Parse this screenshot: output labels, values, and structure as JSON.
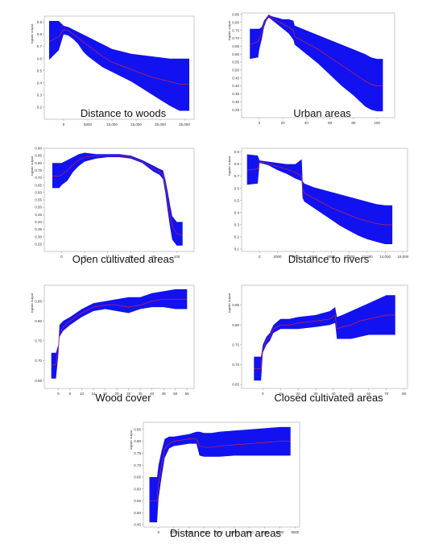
{
  "chart_data": [
    {
      "type": "area",
      "title": "Distance to woods",
      "ylabel": "logistic output",
      "xlim": [
        -4000,
        27000
      ],
      "ylim": [
        0.1,
        0.95
      ],
      "xticks": [
        0,
        5000,
        10000,
        15000,
        20000,
        25000
      ],
      "xtick_labels": [
        "0",
        "5000",
        "10,000",
        "15,000",
        "20,000",
        "25,000"
      ],
      "yticks": [
        0.2,
        0.3,
        0.4,
        0.5,
        0.6,
        0.7,
        0.8,
        0.9
      ],
      "ytick_labels": [
        "0.2",
        "0.3",
        "0.4",
        "0.5",
        "0.6",
        "0.7",
        "0.8",
        "0.9"
      ],
      "x": [
        -3000,
        -1000,
        0,
        1000,
        2000,
        3000,
        4000,
        5000,
        6000,
        7000,
        8000,
        10000,
        12000,
        14000,
        16000,
        18000,
        20000,
        22000,
        24000,
        25000,
        26000
      ],
      "mean": [
        0.74,
        0.78,
        0.84,
        0.83,
        0.8,
        0.77,
        0.74,
        0.71,
        0.68,
        0.65,
        0.62,
        0.57,
        0.54,
        0.51,
        0.48,
        0.45,
        0.43,
        0.41,
        0.39,
        0.39,
        0.39
      ],
      "upper": [
        0.91,
        0.91,
        0.87,
        0.86,
        0.84,
        0.82,
        0.8,
        0.78,
        0.76,
        0.74,
        0.72,
        0.68,
        0.66,
        0.64,
        0.63,
        0.62,
        0.61,
        0.6,
        0.6,
        0.6,
        0.6
      ],
      "lower": [
        0.59,
        0.67,
        0.8,
        0.79,
        0.76,
        0.72,
        0.66,
        0.62,
        0.59,
        0.56,
        0.53,
        0.49,
        0.45,
        0.41,
        0.36,
        0.31,
        0.26,
        0.21,
        0.17,
        0.17,
        0.17
      ]
    },
    {
      "type": "area",
      "title": "Urban areas",
      "ylabel": "logistic output",
      "xlim": [
        -15,
        115
      ],
      "ylim": [
        0.2,
        0.86
      ],
      "xticks": [
        0,
        20,
        40,
        60,
        80,
        100
      ],
      "xtick_labels": [
        "0",
        "20",
        "40",
        "60",
        "80",
        "100"
      ],
      "yticks": [
        0.25,
        0.3,
        0.35,
        0.4,
        0.45,
        0.5,
        0.55,
        0.6,
        0.65,
        0.7,
        0.75,
        0.8,
        0.85
      ],
      "ytick_labels": [
        "0.25",
        "0.30",
        "0.35",
        "0.40",
        "0.45",
        "0.50",
        "0.55",
        "0.60",
        "0.65",
        "0.70",
        "0.75",
        "0.80",
        "0.85"
      ],
      "x": [
        -8,
        -1,
        0,
        2,
        4,
        6,
        8,
        10,
        15,
        20,
        25,
        29,
        30,
        40,
        50,
        60,
        70,
        80,
        90,
        95,
        100,
        105
      ],
      "mean": [
        0.66,
        0.68,
        0.7,
        0.73,
        0.79,
        0.82,
        0.84,
        0.83,
        0.81,
        0.79,
        0.77,
        0.75,
        0.71,
        0.67,
        0.63,
        0.58,
        0.53,
        0.48,
        0.43,
        0.41,
        0.4,
        0.4
      ],
      "upper": [
        0.76,
        0.76,
        0.76,
        0.77,
        0.81,
        0.83,
        0.85,
        0.84,
        0.83,
        0.82,
        0.82,
        0.81,
        0.78,
        0.75,
        0.72,
        0.69,
        0.66,
        0.63,
        0.6,
        0.58,
        0.57,
        0.57
      ],
      "lower": [
        0.57,
        0.58,
        0.63,
        0.69,
        0.77,
        0.81,
        0.83,
        0.82,
        0.79,
        0.76,
        0.73,
        0.69,
        0.66,
        0.6,
        0.54,
        0.47,
        0.4,
        0.34,
        0.27,
        0.25,
        0.24,
        0.24
      ]
    },
    {
      "type": "area",
      "title": "Open cultivated areas",
      "ylabel": "logistic output",
      "xlim": [
        -15,
        115
      ],
      "ylim": [
        0.2,
        0.9
      ],
      "xticks": [
        0,
        20,
        40,
        60,
        80,
        100
      ],
      "xtick_labels": [
        "0",
        "20",
        "40",
        "60",
        "80",
        "100"
      ],
      "yticks": [
        0.25,
        0.3,
        0.35,
        0.4,
        0.45,
        0.5,
        0.55,
        0.6,
        0.65,
        0.7,
        0.75,
        0.8,
        0.85,
        0.9
      ],
      "ytick_labels": [
        "0.25",
        "0.30",
        "0.35",
        "0.40",
        "0.45",
        "0.50",
        "0.55",
        "0.60",
        "0.65",
        "0.70",
        "0.75",
        "0.80",
        "0.85",
        "0.90"
      ],
      "x": [
        -8,
        -2,
        0,
        5,
        10,
        15,
        20,
        30,
        40,
        50,
        60,
        70,
        80,
        85,
        88,
        90,
        92,
        94,
        96,
        100,
        105
      ],
      "mean": [
        0.71,
        0.71,
        0.72,
        0.75,
        0.79,
        0.82,
        0.84,
        0.85,
        0.85,
        0.85,
        0.84,
        0.81,
        0.76,
        0.74,
        0.72,
        0.65,
        0.55,
        0.45,
        0.37,
        0.32,
        0.31
      ],
      "upper": [
        0.8,
        0.8,
        0.8,
        0.82,
        0.84,
        0.86,
        0.87,
        0.86,
        0.86,
        0.86,
        0.85,
        0.82,
        0.78,
        0.76,
        0.75,
        0.69,
        0.61,
        0.52,
        0.44,
        0.4,
        0.4
      ],
      "lower": [
        0.63,
        0.63,
        0.65,
        0.68,
        0.74,
        0.78,
        0.81,
        0.83,
        0.84,
        0.84,
        0.83,
        0.8,
        0.74,
        0.72,
        0.69,
        0.6,
        0.48,
        0.37,
        0.28,
        0.24,
        0.24
      ]
    },
    {
      "type": "area",
      "title": "Distance to rivers",
      "ylabel": "logistic output",
      "xlim": [
        -2000,
        16500
      ],
      "ylim": [
        0.08,
        0.93
      ],
      "xticks": [
        0,
        2000,
        4000,
        6000,
        8000,
        10000,
        12000,
        14000,
        16000
      ],
      "xtick_labels": [
        "0",
        "2000",
        "4000",
        "6000",
        "8000",
        "10,000",
        "12,000",
        "14,000",
        "16,000"
      ],
      "yticks": [
        0.1,
        0.2,
        0.3,
        0.4,
        0.5,
        0.6,
        0.7,
        0.8,
        0.9
      ],
      "ytick_labels": [
        "0.1",
        "0.2",
        "0.3",
        "0.4",
        "0.5",
        "0.6",
        "0.7",
        "0.8",
        "0.9"
      ],
      "x": [
        -1400,
        -200,
        0,
        1000,
        2000,
        3000,
        4000,
        4700,
        4800,
        5000,
        6000,
        7000,
        8000,
        9000,
        10000,
        11000,
        12000,
        13000,
        14000,
        14800
      ],
      "mean": [
        0.75,
        0.76,
        0.82,
        0.8,
        0.78,
        0.76,
        0.73,
        0.7,
        0.6,
        0.56,
        0.52,
        0.48,
        0.44,
        0.41,
        0.38,
        0.35,
        0.33,
        0.31,
        0.3,
        0.3
      ],
      "upper": [
        0.88,
        0.87,
        0.83,
        0.82,
        0.81,
        0.8,
        0.8,
        0.84,
        0.66,
        0.64,
        0.61,
        0.59,
        0.57,
        0.55,
        0.53,
        0.51,
        0.49,
        0.47,
        0.46,
        0.46
      ],
      "lower": [
        0.63,
        0.64,
        0.81,
        0.79,
        0.75,
        0.72,
        0.68,
        0.66,
        0.52,
        0.49,
        0.44,
        0.39,
        0.34,
        0.29,
        0.25,
        0.21,
        0.18,
        0.16,
        0.14,
        0.14
      ]
    },
    {
      "type": "area",
      "title": "Wood cover",
      "ylabel": "logistic output",
      "xlim": [
        -6,
        58
      ],
      "ylim": [
        0.63,
        0.89
      ],
      "xticks": [
        0,
        5,
        10,
        15,
        20,
        25,
        30,
        35,
        40,
        45,
        50,
        55
      ],
      "xtick_labels": [
        "0",
        "5",
        "10",
        "15",
        "20",
        "25",
        "30",
        "35",
        "40",
        "45",
        "50",
        "55"
      ],
      "yticks": [
        0.65,
        0.7,
        0.75,
        0.8,
        0.85
      ],
      "ytick_labels": [
        "0.65",
        "0.70",
        "0.75",
        "0.80",
        "0.85"
      ],
      "x": [
        -3,
        -1,
        0,
        0.5,
        2,
        5,
        10,
        15,
        20,
        25,
        30,
        35,
        40,
        45,
        50,
        55
      ],
      "mean": [
        0.69,
        0.69,
        0.73,
        0.77,
        0.785,
        0.8,
        0.82,
        0.835,
        0.84,
        0.84,
        0.835,
        0.84,
        0.85,
        0.855,
        0.855,
        0.855
      ],
      "upper": [
        0.72,
        0.72,
        0.74,
        0.79,
        0.8,
        0.81,
        0.83,
        0.845,
        0.85,
        0.855,
        0.86,
        0.86,
        0.87,
        0.875,
        0.88,
        0.88
      ],
      "lower": [
        0.655,
        0.655,
        0.715,
        0.76,
        0.775,
        0.79,
        0.81,
        0.825,
        0.83,
        0.825,
        0.82,
        0.83,
        0.835,
        0.835,
        0.83,
        0.83
      ]
    },
    {
      "type": "area",
      "title": "Closed cultivated areas",
      "ylabel": "logistic output",
      "xlim": [
        -12,
        82
      ],
      "ylim": [
        0.64,
        0.9
      ],
      "xticks": [
        0,
        10,
        20,
        30,
        40,
        50,
        60,
        70,
        80
      ],
      "xtick_labels": [
        "0",
        "10",
        "20",
        "30",
        "40",
        "50",
        "60",
        "70",
        "80"
      ],
      "yticks": [
        0.65,
        0.7,
        0.75,
        0.8,
        0.85
      ],
      "ytick_labels": [
        "0.65",
        "0.70",
        "0.75",
        "0.80",
        "0.85"
      ],
      "x": [
        -5,
        -1,
        0,
        2,
        4,
        6,
        10,
        15,
        20,
        30,
        38,
        41,
        42,
        45,
        50,
        55,
        60,
        65,
        70,
        75
      ],
      "mean": [
        0.69,
        0.69,
        0.74,
        0.76,
        0.77,
        0.79,
        0.8,
        0.8,
        0.805,
        0.81,
        0.815,
        0.825,
        0.79,
        0.795,
        0.8,
        0.81,
        0.815,
        0.82,
        0.825,
        0.825
      ],
      "upper": [
        0.72,
        0.72,
        0.75,
        0.77,
        0.78,
        0.8,
        0.815,
        0.815,
        0.82,
        0.825,
        0.835,
        0.845,
        0.82,
        0.825,
        0.835,
        0.845,
        0.855,
        0.865,
        0.875,
        0.875
      ],
      "lower": [
        0.66,
        0.66,
        0.73,
        0.75,
        0.76,
        0.78,
        0.79,
        0.79,
        0.79,
        0.795,
        0.8,
        0.805,
        0.765,
        0.765,
        0.765,
        0.77,
        0.775,
        0.775,
        0.775,
        0.775
      ]
    },
    {
      "type": "area",
      "title": "Distance to urban areas",
      "ylabel": "logistic output",
      "xlim": [
        -1000,
        9300
      ],
      "ylim": [
        0.44,
        0.88
      ],
      "xticks": [
        0,
        1000,
        2000,
        3000,
        4000,
        5000,
        6000,
        7000,
        8000,
        9000
      ],
      "xtick_labels": [
        "0",
        "1000",
        "2000",
        "3000",
        "4000",
        "5000",
        "6000",
        "7000",
        "8000",
        "9000"
      ],
      "yticks": [
        0.45,
        0.5,
        0.55,
        0.6,
        0.65,
        0.7,
        0.75,
        0.8,
        0.85
      ],
      "ytick_labels": [
        "0.45",
        "0.50",
        "0.55",
        "0.60",
        "0.65",
        "0.70",
        "0.75",
        "0.80",
        "0.85"
      ],
      "x": [
        -600,
        -100,
        0,
        200,
        400,
        700,
        1000,
        1500,
        2000,
        2500,
        2700,
        3000,
        3500,
        4000,
        5000,
        6000,
        7000,
        8000,
        8700
      ],
      "mean": [
        0.55,
        0.55,
        0.62,
        0.7,
        0.77,
        0.79,
        0.8,
        0.805,
        0.81,
        0.81,
        0.78,
        0.775,
        0.775,
        0.78,
        0.785,
        0.79,
        0.795,
        0.8,
        0.8
      ],
      "upper": [
        0.65,
        0.65,
        0.7,
        0.76,
        0.81,
        0.82,
        0.82,
        0.825,
        0.83,
        0.84,
        0.84,
        0.835,
        0.835,
        0.84,
        0.845,
        0.85,
        0.855,
        0.86,
        0.86
      ],
      "lower": [
        0.46,
        0.46,
        0.56,
        0.65,
        0.73,
        0.77,
        0.78,
        0.785,
        0.79,
        0.79,
        0.74,
        0.735,
        0.735,
        0.735,
        0.74,
        0.74,
        0.74,
        0.74,
        0.74
      ]
    }
  ]
}
